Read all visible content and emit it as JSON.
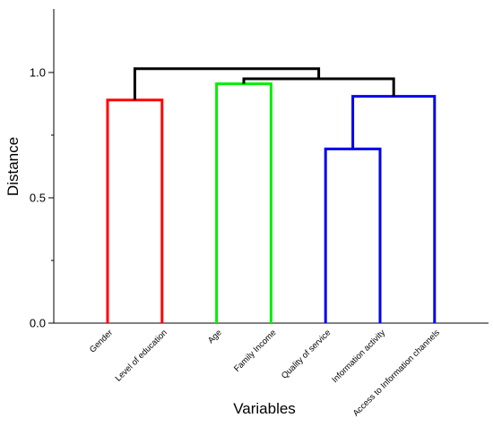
{
  "chart_data": {
    "type": "dendrogram",
    "xlabel": "Variables",
    "ylabel": "Distance",
    "ylim": [
      0,
      1.25
    ],
    "yticks": [
      "0.0",
      "0.5",
      "1.0"
    ],
    "ytick_values": [
      0,
      0.5,
      1.0
    ],
    "y_minor_ticks": [
      0.25,
      0.75
    ],
    "categories": [
      "Gender",
      "Level of education",
      "Age",
      "Family Income",
      "Quality of service",
      "Information activity",
      "Access to Information channels"
    ],
    "merges": [
      {
        "left": "leaf:0",
        "right": "leaf:1",
        "height": 0.89,
        "color": "#ff0000"
      },
      {
        "left": "leaf:2",
        "right": "leaf:3",
        "height": 0.955,
        "color": "#00ee00"
      },
      {
        "left": "leaf:4",
        "right": "leaf:5",
        "height": 0.695,
        "color": "#0000ee"
      },
      {
        "left": "node:2",
        "right": "leaf:6",
        "height": 0.905,
        "color": "#0000ee"
      },
      {
        "left": "node:1",
        "right": "node:3",
        "height": 0.975,
        "color": "#000000"
      },
      {
        "left": "node:0",
        "right": "node:4",
        "height": 1.015,
        "color": "#000000"
      }
    ]
  }
}
